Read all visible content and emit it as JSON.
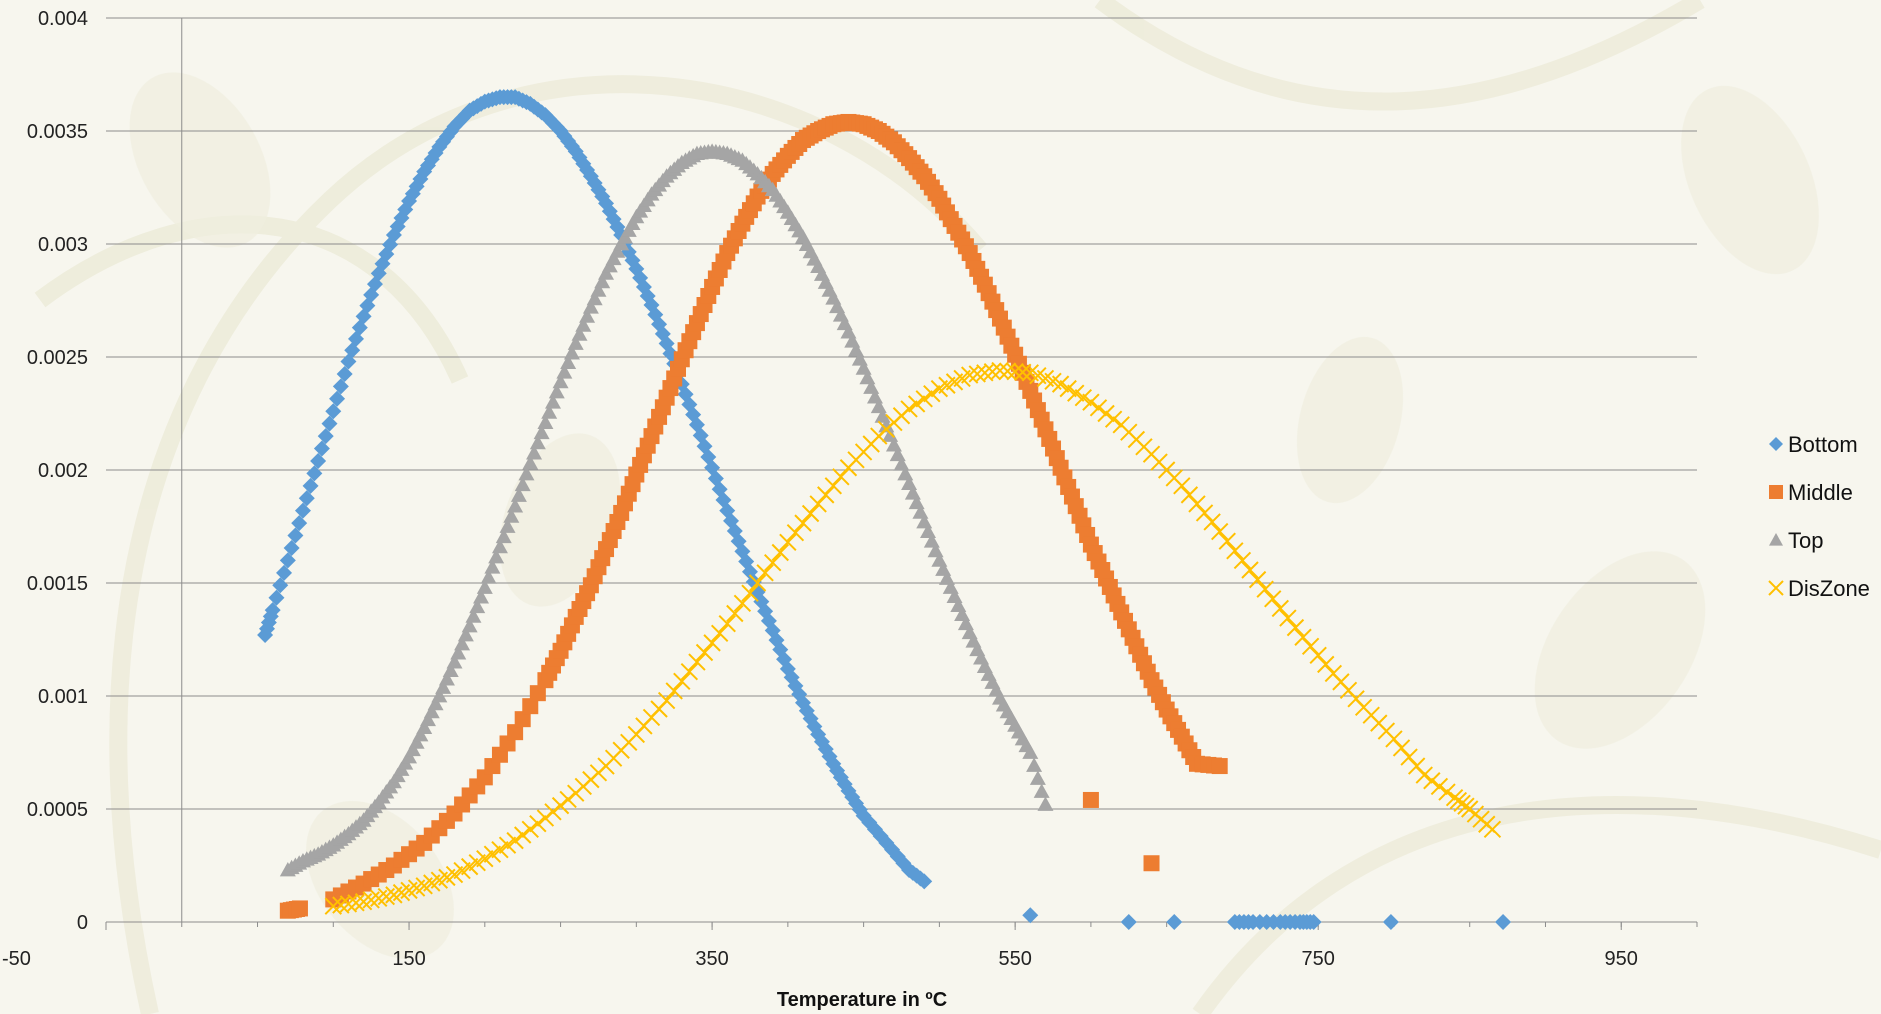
{
  "colors": {
    "background": "#f7f6ee",
    "grid": "#8c8c8c",
    "Bottom": "#5b9bd5",
    "Middle": "#ed7d31",
    "Top": "#a5a5a5",
    "DisZone": "#ffc000"
  },
  "chart_data": {
    "type": "scatter",
    "title": "",
    "xlabel": "Temperature in ºC",
    "ylabel": "",
    "xlim": [
      -50,
      1000
    ],
    "ylim": [
      0,
      0.004
    ],
    "x_ticks": [
      -50,
      150,
      350,
      550,
      750,
      950
    ],
    "x_tick_labels": [
      "-50",
      "150",
      "350",
      "550",
      "750",
      "950"
    ],
    "y_ticks": [
      0,
      0.0005,
      0.001,
      0.0015,
      0.002,
      0.0025,
      0.003,
      0.0035,
      0.004
    ],
    "y_tick_labels": [
      "0",
      "0.0005",
      "0.001",
      "0.0015",
      "0.002",
      "0.0025",
      "0.003",
      "0.0035",
      "0.004"
    ],
    "grid": "horizontal",
    "legend_position": "right",
    "series": [
      {
        "name": "Bottom",
        "marker": "diamond",
        "points": [
          [
            55,
            0.00127
          ],
          [
            60,
            0.00138
          ],
          [
            70,
            0.0016
          ],
          [
            80,
            0.00182
          ],
          [
            90,
            0.00204
          ],
          [
            100,
            0.00226
          ],
          [
            110,
            0.00248
          ],
          [
            120,
            0.00268
          ],
          [
            130,
            0.00287
          ],
          [
            140,
            0.00304
          ],
          [
            150,
            0.00319
          ],
          [
            160,
            0.00332
          ],
          [
            170,
            0.00343
          ],
          [
            180,
            0.00352
          ],
          [
            190,
            0.00359
          ],
          [
            200,
            0.00363
          ],
          [
            210,
            0.00365
          ],
          [
            220,
            0.00365
          ],
          [
            230,
            0.00362
          ],
          [
            240,
            0.00357
          ],
          [
            250,
            0.0035
          ],
          [
            260,
            0.00341
          ],
          [
            270,
            0.0033
          ],
          [
            280,
            0.00318
          ],
          [
            290,
            0.00304
          ],
          [
            300,
            0.00289
          ],
          [
            310,
            0.00273
          ],
          [
            320,
            0.00256
          ],
          [
            330,
            0.00238
          ],
          [
            340,
            0.0022
          ],
          [
            350,
            0.00201
          ],
          [
            360,
            0.00182
          ],
          [
            370,
            0.00164
          ],
          [
            380,
            0.00146
          ],
          [
            390,
            0.00129
          ],
          [
            400,
            0.00112
          ],
          [
            410,
            0.00097
          ],
          [
            420,
            0.00083
          ],
          [
            430,
            0.0007
          ],
          [
            440,
            0.00058
          ],
          [
            450,
            0.00047
          ],
          [
            465,
            0.00035
          ],
          [
            480,
            0.00023
          ],
          [
            490,
            0.00018
          ],
          [
            560,
            3e-05
          ],
          [
            625,
            0.0
          ],
          [
            655,
            0.0
          ],
          [
            695,
            0.0
          ],
          [
            707,
            0.0
          ],
          [
            725,
            0.0
          ],
          [
            738,
            0.0
          ],
          [
            747,
            0.0
          ],
          [
            798,
            0.0
          ],
          [
            872,
            0.0
          ]
        ]
      },
      {
        "name": "Middle",
        "marker": "square",
        "points": [
          [
            70,
            5e-05
          ],
          [
            78,
            6e-05
          ],
          [
            100,
            0.0001
          ],
          [
            120,
            0.00017
          ],
          [
            140,
            0.00025
          ],
          [
            160,
            0.00035
          ],
          [
            180,
            0.00048
          ],
          [
            200,
            0.00064
          ],
          [
            220,
            0.00084
          ],
          [
            240,
            0.00107
          ],
          [
            250,
            0.0012
          ],
          [
            260,
            0.00135
          ],
          [
            270,
            0.00149
          ],
          [
            280,
            0.00165
          ],
          [
            290,
            0.00181
          ],
          [
            300,
            0.00198
          ],
          [
            310,
            0.00215
          ],
          [
            320,
            0.00232
          ],
          [
            330,
            0.00249
          ],
          [
            340,
            0.00265
          ],
          [
            350,
            0.00281
          ],
          [
            360,
            0.00296
          ],
          [
            370,
            0.00309
          ],
          [
            380,
            0.00321
          ],
          [
            390,
            0.00331
          ],
          [
            400,
            0.00339
          ],
          [
            410,
            0.00346
          ],
          [
            420,
            0.0035
          ],
          [
            430,
            0.00353
          ],
          [
            440,
            0.00354
          ],
          [
            450,
            0.00353
          ],
          [
            460,
            0.0035
          ],
          [
            470,
            0.00345
          ],
          [
            480,
            0.00338
          ],
          [
            490,
            0.0033
          ],
          [
            500,
            0.0032
          ],
          [
            510,
            0.00308
          ],
          [
            520,
            0.00296
          ],
          [
            530,
            0.00282
          ],
          [
            540,
            0.00267
          ],
          [
            550,
            0.00251
          ],
          [
            560,
            0.00235
          ],
          [
            570,
            0.00218
          ],
          [
            580,
            0.00201
          ],
          [
            590,
            0.00184
          ],
          [
            600,
            0.00167
          ],
          [
            610,
            0.00152
          ],
          [
            620,
            0.00137
          ],
          [
            630,
            0.00122
          ],
          [
            640,
            0.00107
          ],
          [
            650,
            0.00094
          ],
          [
            660,
            0.00082
          ],
          [
            670,
            0.0007
          ],
          [
            685,
            0.00069
          ],
          [
            600,
            0.00054
          ],
          [
            640,
            0.00026
          ]
        ]
      },
      {
        "name": "Top",
        "marker": "triangle",
        "points": [
          [
            70,
            0.00023
          ],
          [
            80,
            0.00027
          ],
          [
            90,
            0.0003
          ],
          [
            100,
            0.00034
          ],
          [
            110,
            0.00039
          ],
          [
            120,
            0.00045
          ],
          [
            130,
            0.00053
          ],
          [
            140,
            0.00062
          ],
          [
            150,
            0.00073
          ],
          [
            160,
            0.00086
          ],
          [
            170,
            0.001
          ],
          [
            180,
            0.00115
          ],
          [
            190,
            0.00131
          ],
          [
            200,
            0.00148
          ],
          [
            210,
            0.00166
          ],
          [
            220,
            0.00184
          ],
          [
            230,
            0.00203
          ],
          [
            240,
            0.00221
          ],
          [
            250,
            0.00239
          ],
          [
            260,
            0.00256
          ],
          [
            270,
            0.00272
          ],
          [
            280,
            0.00287
          ],
          [
            290,
            0.003
          ],
          [
            300,
            0.00312
          ],
          [
            310,
            0.00322
          ],
          [
            320,
            0.0033
          ],
          [
            330,
            0.00336
          ],
          [
            340,
            0.0034
          ],
          [
            350,
            0.00341
          ],
          [
            360,
            0.0034
          ],
          [
            370,
            0.00337
          ],
          [
            380,
            0.00331
          ],
          [
            390,
            0.00324
          ],
          [
            400,
            0.00314
          ],
          [
            410,
            0.00303
          ],
          [
            420,
            0.0029
          ],
          [
            430,
            0.00276
          ],
          [
            440,
            0.00261
          ],
          [
            450,
            0.00245
          ],
          [
            460,
            0.00228
          ],
          [
            470,
            0.00211
          ],
          [
            480,
            0.00194
          ],
          [
            490,
            0.00177
          ],
          [
            500,
            0.0016
          ],
          [
            510,
            0.00144
          ],
          [
            520,
            0.00128
          ],
          [
            530,
            0.00113
          ],
          [
            540,
            0.00099
          ],
          [
            550,
            0.00087
          ],
          [
            560,
            0.00075
          ],
          [
            570,
            0.00052
          ]
        ]
      },
      {
        "name": "DisZone",
        "marker": "x",
        "points": [
          [
            100,
            7e-05
          ],
          [
            120,
            9e-05
          ],
          [
            140,
            0.00012
          ],
          [
            160,
            0.00016
          ],
          [
            180,
            0.00021
          ],
          [
            200,
            0.00028
          ],
          [
            220,
            0.00036
          ],
          [
            240,
            0.00046
          ],
          [
            260,
            0.00057
          ],
          [
            280,
            0.00069
          ],
          [
            300,
            0.00083
          ],
          [
            320,
            0.00098
          ],
          [
            340,
            0.00115
          ],
          [
            360,
            0.00132
          ],
          [
            380,
            0.0015
          ],
          [
            400,
            0.00168
          ],
          [
            420,
            0.00185
          ],
          [
            440,
            0.00201
          ],
          [
            460,
            0.00215
          ],
          [
            480,
            0.00227
          ],
          [
            500,
            0.00236
          ],
          [
            520,
            0.00242
          ],
          [
            540,
            0.00244
          ],
          [
            560,
            0.00243
          ],
          [
            580,
            0.00238
          ],
          [
            600,
            0.0023
          ],
          [
            620,
            0.0022
          ],
          [
            640,
            0.00207
          ],
          [
            660,
            0.00193
          ],
          [
            680,
            0.00177
          ],
          [
            700,
            0.0016
          ],
          [
            720,
            0.00143
          ],
          [
            740,
            0.00126
          ],
          [
            760,
            0.0011
          ],
          [
            780,
            0.00095
          ],
          [
            800,
            0.00081
          ],
          [
            820,
            0.00065
          ],
          [
            840,
            0.00055
          ],
          [
            850,
            0.0005
          ],
          [
            865,
            0.00041
          ]
        ]
      }
    ]
  }
}
